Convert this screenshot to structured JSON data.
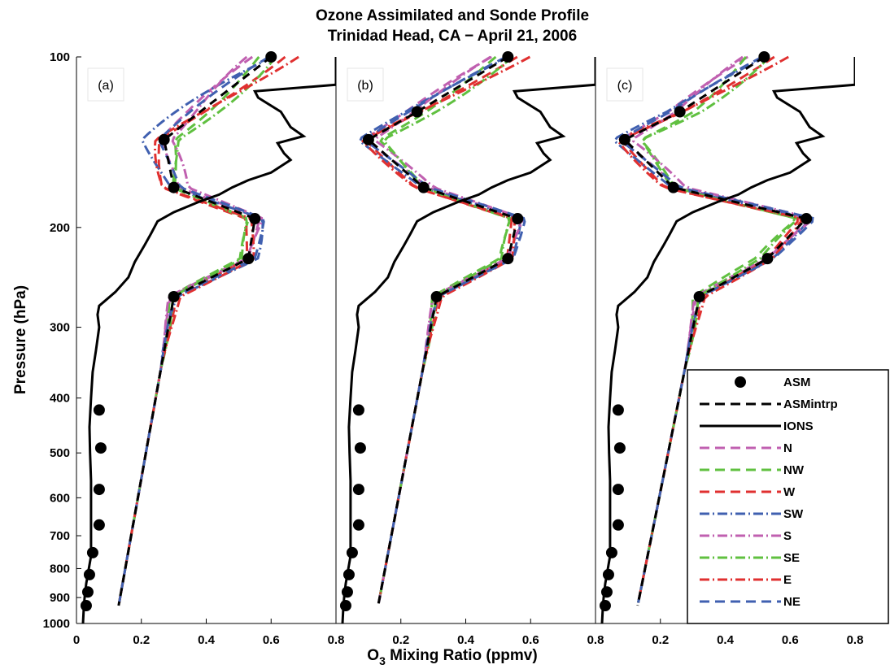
{
  "chart_data": {
    "type": "line",
    "title": "Ozone Assimilated and Sonde Profile",
    "subtitle": "Trinidad Head, CA − April 21, 2006",
    "xlabel_main": "O",
    "xlabel_sub": "3",
    "xlabel_rest": " Mixing Ratio (ppmv)",
    "ylabel": "Pressure (hPa)",
    "y_scale": "log",
    "y_reversed": true,
    "ylim": [
      100,
      1000
    ],
    "y_ticks": [
      100,
      200,
      300,
      400,
      500,
      600,
      700,
      800,
      900,
      1000
    ],
    "y_tick_labels": [
      "100",
      "200",
      "300",
      "400",
      "500",
      "600",
      "700",
      "800",
      "900",
      "1000"
    ],
    "xlim": [
      0,
      0.8
    ],
    "panels": [
      {
        "label": "(a)",
        "x_ticks": [
          0,
          0.2,
          0.4,
          0.6,
          0.8
        ],
        "x_tick_labels": [
          "0",
          "0.2",
          "0.4",
          "0.6",
          "0.8"
        ],
        "asm": {
          "p": [
            100,
            140,
            170,
            193,
            227,
            265,
            930
          ],
          "x": [
            0.6,
            0.27,
            0.3,
            0.55,
            0.53,
            0.3,
            0.03
          ]
        },
        "spread": [
          0.16,
          0.2,
          0.18,
          0.3,
          0.25,
          0.22,
          0.25,
          0.17,
          0.2,
          0.2
        ]
      },
      {
        "label": "(b)",
        "x_ticks": [
          0.2,
          0.4,
          0.6,
          0.8
        ],
        "x_tick_labels": [
          "0.2",
          "0.4",
          "0.6",
          "0.8"
        ],
        "asm": {
          "p": [
            100,
            125,
            140,
            170,
            193,
            227,
            265,
            930
          ],
          "x": [
            0.53,
            0.25,
            0.1,
            0.27,
            0.56,
            0.53,
            0.31,
            0.03
          ]
        },
        "spread": [
          0.14,
          0.2,
          0.12,
          0.14,
          0.18,
          0.22,
          0.2,
          0.14,
          0.16,
          0.14
        ]
      },
      {
        "label": "(c)",
        "x_ticks": [
          0.2,
          0.4,
          0.6,
          0.8
        ],
        "x_tick_labels": [
          "0.2",
          "0.4",
          "0.6",
          "0.8"
        ],
        "asm": {
          "p": [
            100,
            125,
            140,
            170,
            193,
            227,
            265,
            930
          ],
          "x": [
            0.52,
            0.26,
            0.09,
            0.24,
            0.65,
            0.53,
            0.32,
            0.03
          ]
        },
        "spread": [
          0.14,
          0.3,
          0.13,
          0.16,
          0.22,
          0.25,
          0.22,
          0.16,
          0.18,
          0.15
        ]
      }
    ],
    "ions": {
      "p": [
        100,
        112,
        115,
        118,
        125,
        133,
        138,
        142,
        148,
        152,
        160,
        165,
        170,
        175,
        180,
        188,
        195,
        205,
        215,
        230,
        245,
        260,
        275,
        285,
        300,
        330,
        360,
        400,
        450,
        500,
        560,
        620,
        680,
        730,
        760,
        800,
        850,
        900,
        950,
        1000
      ],
      "x": [
        0.8,
        0.8,
        0.55,
        0.56,
        0.63,
        0.66,
        0.7,
        0.62,
        0.64,
        0.66,
        0.6,
        0.53,
        0.48,
        0.44,
        0.38,
        0.3,
        0.25,
        0.23,
        0.21,
        0.18,
        0.16,
        0.12,
        0.07,
        0.065,
        0.07,
        0.06,
        0.05,
        0.045,
        0.04,
        0.042,
        0.045,
        0.045,
        0.045,
        0.045,
        0.045,
        0.038,
        0.03,
        0.025,
        0.022,
        0.02
      ]
    },
    "asm_intrp": {
      "p": [
        100,
        110,
        125,
        140,
        160,
        170,
        180,
        193,
        210,
        227,
        245,
        265,
        285,
        310,
        340,
        370,
        400,
        430,
        460,
        500,
        540,
        580,
        620,
        670,
        720,
        750,
        800,
        830,
        860,
        900,
        930
      ],
      "x_note": "derived from panel asm points"
    },
    "regions": [
      "N",
      "NW",
      "W",
      "SW",
      "S",
      "SE",
      "E",
      "NE"
    ],
    "legend": {
      "position": "lower-right",
      "entries": [
        {
          "label": "ASM",
          "style": "marker",
          "color": "#000000"
        },
        {
          "label": "ASMintrp",
          "style": "dash",
          "color": "#000000"
        },
        {
          "label": "IONS",
          "style": "solid",
          "color": "#000000"
        },
        {
          "label": "N",
          "style": "dash",
          "color": "#c060b0"
        },
        {
          "label": "NW",
          "style": "dash",
          "color": "#60c040"
        },
        {
          "label": "W",
          "style": "dash",
          "color": "#e03030"
        },
        {
          "label": "SW",
          "style": "dashdot",
          "color": "#4060b0"
        },
        {
          "label": "S",
          "style": "dashdot",
          "color": "#c060b0"
        },
        {
          "label": "SE",
          "style": "dashdot",
          "color": "#60c040"
        },
        {
          "label": "E",
          "style": "dashdot",
          "color": "#e03030"
        },
        {
          "label": "NE",
          "style": "dash",
          "color": "#4060b0"
        }
      ]
    },
    "grid": false
  }
}
